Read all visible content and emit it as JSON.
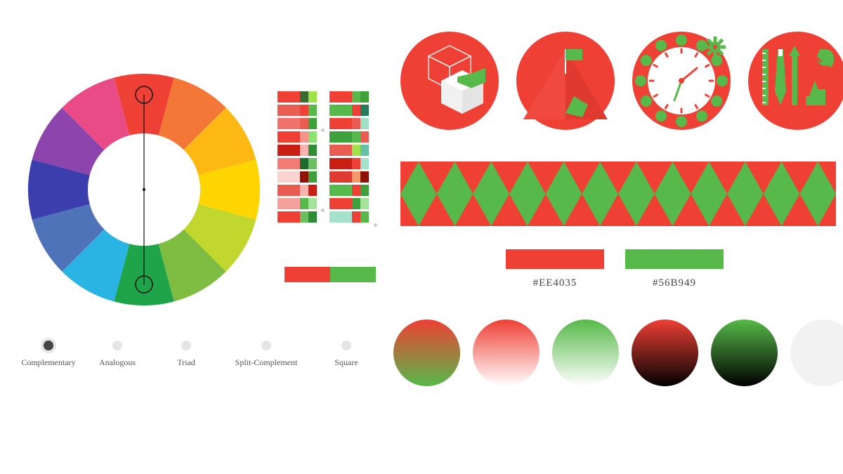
{
  "primary": "#EE4035",
  "secondary": "#56B949",
  "background": "#ffffff",
  "wheel_segments": [
    "#EE4035",
    "#F37736",
    "#FDB813",
    "#FFD500",
    "#C1D72E",
    "#7EBD42",
    "#1FA449",
    "#2AB4E4",
    "#4F73B8",
    "#3B3EAC",
    "#8E44AD",
    "#E94B86"
  ],
  "wheel_handle_angles": [
    0,
    180
  ],
  "harmony_modes": [
    {
      "label": "Complementary",
      "active": true
    },
    {
      "label": "Analogous",
      "active": false
    },
    {
      "label": "Triad",
      "active": false
    },
    {
      "label": "Split-Complement",
      "active": false
    },
    {
      "label": "Square",
      "active": false
    }
  ],
  "palette_left": [
    [
      "#EE4035",
      "#3A6B31",
      "#9FE24A"
    ],
    [
      "#E85C52",
      "#EE4035",
      "#56B949"
    ],
    [
      "#F0736B",
      "#E85C52",
      "#3FA13C"
    ],
    [
      "#EE4035",
      "#F3948E",
      "#8DE26D"
    ],
    [
      "#C91E14",
      "#F7B4AF",
      "#2F8C37"
    ],
    [
      "#F17C74",
      "#1E6B2C",
      "#6DBE63"
    ],
    [
      "#FAD3D0",
      "#8F1209",
      "#3FA13C"
    ],
    [
      "#E85C52",
      "#F7B4AF",
      "#C91E14"
    ],
    [
      "#F5A19B",
      "#56B949",
      "#A5E29C"
    ],
    [
      "#EE4035",
      "#6DBE63",
      "#2F8C37"
    ]
  ],
  "palette_right": [
    [
      "#EE4035",
      "#56B949",
      "#3FA13C"
    ],
    [
      "#56B949",
      "#EE4035",
      "#257A5A"
    ],
    [
      "#EE4035",
      "#E85C52",
      "#9FE2C2"
    ],
    [
      "#3FA13C",
      "#56B949",
      "#E85C52"
    ],
    [
      "#E85C52",
      "#9FE24A",
      "#64C1A5"
    ],
    [
      "#C91E14",
      "#EE4035",
      "#A5E2CC"
    ],
    [
      "#DE3A30",
      "#F39A6B",
      "#8F1209"
    ],
    [
      "#56B949",
      "#EE4035",
      "#3FA13C"
    ],
    [
      "#EE4035",
      "#3FA13C",
      "#A5E29C"
    ],
    [
      "#A5E2CC",
      "#EE4035",
      "#56B949"
    ]
  ],
  "swatch_pair": [
    "#EE4035",
    "#56B949"
  ],
  "swatch_labels": [
    "#EE4035",
    "#56B949"
  ],
  "badges": [
    {
      "bg": "#EE4035",
      "icon": "cube"
    },
    {
      "bg": "#EE4035",
      "icon": "flag"
    },
    {
      "bg": "#EE4035",
      "icon": "clock"
    },
    {
      "bg": "#EE4035",
      "icon": "tools"
    }
  ],
  "strip_colors": {
    "bg": "#56B949",
    "fg": "#EE4035",
    "diamonds": 12
  },
  "gradients": [
    {
      "type": "linear",
      "from": "#EE4035",
      "to": "#56B949"
    },
    {
      "type": "linear",
      "from": "#EE4035",
      "to": "#ffffff"
    },
    {
      "type": "linear",
      "from": "#56B949",
      "to": "#ffffff"
    },
    {
      "type": "linear",
      "from": "#EE4035",
      "to": "#000000"
    },
    {
      "type": "linear",
      "from": "#56B949",
      "to": "#000000"
    },
    {
      "type": "solid",
      "color": "#f2f2f2"
    }
  ]
}
